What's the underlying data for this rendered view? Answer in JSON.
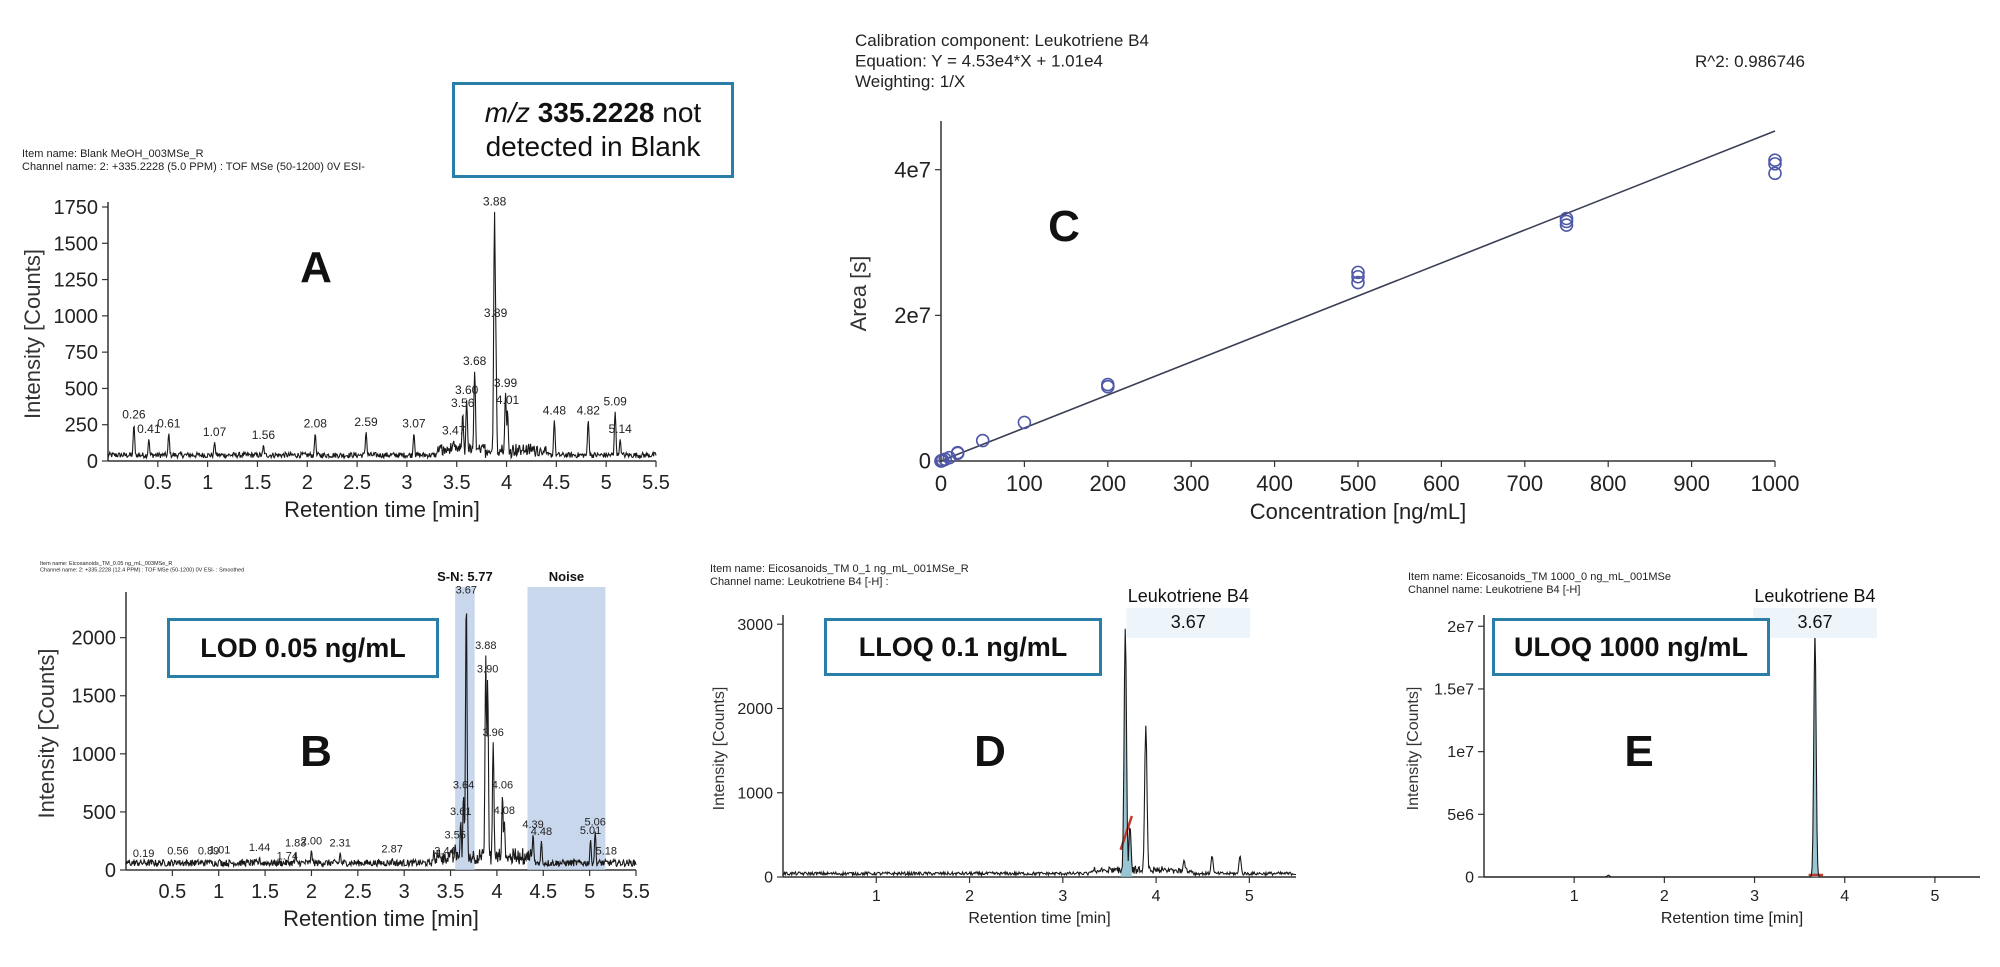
{
  "colors": {
    "trace": "#1a1a1a",
    "fit": "#3a3f55",
    "point": "#4f58a8",
    "peak_fill": "#7fb8c9",
    "baseline": "#c0392b",
    "band": "#b5c9e6",
    "box_border": "#2a7fa8",
    "label_bg": "#eef5fa"
  },
  "chart_data": [
    {
      "panel": "A",
      "type": "line",
      "header": [
        "Item name: Blank MeOH_003MSe_R",
        "Channel name: 2: +335.2228 (5.0 PPM) : TOF MSe (50-1200) 0V ESI-"
      ],
      "panel_letter": "A",
      "xlabel": "Retention time [min]",
      "ylabel": "Intensity [Counts]",
      "xlim": [
        0,
        5.5
      ],
      "ylim": [
        0,
        1750
      ],
      "xticks": [
        0.5,
        1,
        1.5,
        2,
        2.5,
        3,
        3.5,
        4,
        4.5,
        5,
        5.5
      ],
      "yticks": [
        0,
        250,
        500,
        750,
        1000,
        1250,
        1500,
        1750
      ],
      "noise_level": 60,
      "peaks": [
        [
          0.26,
          250
        ],
        [
          0.41,
          150
        ],
        [
          0.61,
          190
        ],
        [
          1.07,
          130
        ],
        [
          1.56,
          110
        ],
        [
          2.08,
          190
        ],
        [
          2.59,
          200
        ],
        [
          3.07,
          190
        ],
        [
          3.47,
          140
        ],
        [
          3.56,
          330
        ],
        [
          3.6,
          420
        ],
        [
          3.68,
          620
        ],
        [
          3.88,
          1720
        ],
        [
          3.89,
          950
        ],
        [
          3.99,
          470
        ],
        [
          4.01,
          350
        ],
        [
          4.48,
          280
        ],
        [
          4.82,
          280
        ],
        [
          5.09,
          340
        ],
        [
          5.14,
          150
        ]
      ],
      "peak_labels": [
        [
          0.26,
          "0.26"
        ],
        [
          0.41,
          "0.41"
        ],
        [
          0.61,
          "0.61"
        ],
        [
          1.07,
          "1.07"
        ],
        [
          1.56,
          "1.56"
        ],
        [
          2.08,
          "2.08"
        ],
        [
          2.59,
          "2.59"
        ],
        [
          3.07,
          "3.07"
        ],
        [
          3.47,
          "3.47"
        ],
        [
          3.56,
          "3.56"
        ],
        [
          3.6,
          "3.60"
        ],
        [
          3.68,
          "3.68"
        ],
        [
          3.88,
          "3.88"
        ],
        [
          3.89,
          "3.89"
        ],
        [
          3.99,
          "3.99"
        ],
        [
          4.01,
          "4.01"
        ],
        [
          4.48,
          "4.48"
        ],
        [
          4.82,
          "4.82"
        ],
        [
          5.09,
          "5.09"
        ],
        [
          5.14,
          "5.14"
        ]
      ],
      "callout": {
        "italic": "m/z",
        "bold": "335.2228",
        "rest": "not",
        "line2": "detected in Blank"
      }
    },
    {
      "panel": "B",
      "type": "line",
      "header": [
        "Item name: Eicosanoids_TM_0.05 ng_mL_003MSe_R",
        "Channel name: 2: +335.2228 (12.4 PPM) : TOF MSe (50-1200) 0V ESI- : Smoothed"
      ],
      "panel_letter": "B",
      "xlabel": "Retention time [min]",
      "ylabel": "Intensity [Counts]",
      "xlim": [
        0,
        5.5
      ],
      "ylim": [
        0,
        2350
      ],
      "xticks": [
        0.5,
        1,
        1.5,
        2,
        2.5,
        3,
        3.5,
        4,
        4.5,
        5,
        5.5
      ],
      "yticks": [
        0,
        500,
        1000,
        1500,
        2000
      ],
      "noise_level": 90,
      "peaks": [
        [
          0.19,
          60
        ],
        [
          0.56,
          80
        ],
        [
          0.89,
          80
        ],
        [
          1.01,
          90
        ],
        [
          1.44,
          110
        ],
        [
          1.74,
          40
        ],
        [
          1.83,
          150
        ],
        [
          2.0,
          170
        ],
        [
          2.31,
          150
        ],
        [
          2.87,
          100
        ],
        [
          3.44,
          80
        ],
        [
          3.55,
          220
        ],
        [
          3.61,
          420
        ],
        [
          3.64,
          650
        ],
        [
          3.67,
          2330
        ],
        [
          3.88,
          1850
        ],
        [
          3.9,
          1650
        ],
        [
          3.96,
          1100
        ],
        [
          4.06,
          650
        ],
        [
          4.08,
          430
        ],
        [
          4.39,
          310
        ],
        [
          4.48,
          250
        ],
        [
          5.01,
          260
        ],
        [
          5.06,
          330
        ],
        [
          5.18,
          80
        ]
      ],
      "peak_labels": [
        [
          0.19,
          "0.19"
        ],
        [
          0.56,
          "0.56"
        ],
        [
          0.89,
          "0.89"
        ],
        [
          1.01,
          "1.01"
        ],
        [
          1.44,
          "1.44"
        ],
        [
          1.74,
          "1.74"
        ],
        [
          1.83,
          "1.83"
        ],
        [
          2.0,
          "2.00"
        ],
        [
          2.31,
          "2.31"
        ],
        [
          2.87,
          "2.87"
        ],
        [
          3.44,
          "3.44"
        ],
        [
          3.55,
          "3.55"
        ],
        [
          3.61,
          "3.61"
        ],
        [
          3.64,
          "3.64"
        ],
        [
          3.67,
          "3.67"
        ],
        [
          3.88,
          "3.88"
        ],
        [
          3.9,
          "3.90"
        ],
        [
          3.96,
          "3.96"
        ],
        [
          4.06,
          "4.06"
        ],
        [
          4.08,
          "4.08"
        ],
        [
          4.39,
          "4.39"
        ],
        [
          4.48,
          "4.48"
        ],
        [
          5.01,
          "5.01"
        ],
        [
          5.06,
          "5.06"
        ],
        [
          5.18,
          "5.18"
        ]
      ],
      "bands": [
        {
          "label": "S-N: 5.77",
          "from": 3.55,
          "to": 3.76
        },
        {
          "label": "Noise",
          "from": 4.33,
          "to": 5.17
        }
      ],
      "callout": {
        "text": "LOD 0.05 ng/mL"
      }
    },
    {
      "panel": "C",
      "type": "scatter",
      "header": [
        "Calibration component: Leukotriene B4",
        "Equation: Y = 4.53e4*X + 1.01e4",
        "Weighting: 1/X"
      ],
      "r2_label": "R^2: 0.986746",
      "panel_letter": "C",
      "xlabel": "Concentration [ng/mL]",
      "ylabel": "Area [s]",
      "xlim": [
        0,
        1000
      ],
      "ylim": [
        0,
        46000000.0
      ],
      "xticks": [
        0,
        100,
        200,
        300,
        400,
        500,
        600,
        700,
        800,
        900,
        1000
      ],
      "yticks": [
        [
          0,
          "0"
        ],
        [
          20000000.0,
          "2e7"
        ],
        [
          40000000.0,
          "4e7"
        ]
      ],
      "fit": {
        "slope": 45300,
        "intercept": 10100
      },
      "points": [
        [
          0.05,
          0
        ],
        [
          0.1,
          0
        ],
        [
          0.5,
          20000
        ],
        [
          1,
          45000
        ],
        [
          2,
          90000
        ],
        [
          5,
          230000
        ],
        [
          10,
          450000
        ],
        [
          20,
          1050000
        ],
        [
          20,
          1150000
        ],
        [
          50,
          2800000
        ],
        [
          100,
          5300000
        ],
        [
          200,
          10200000
        ],
        [
          200,
          10500000
        ],
        [
          500,
          24500000
        ],
        [
          500,
          25300000
        ],
        [
          500,
          25900000
        ],
        [
          750,
          32400000
        ],
        [
          750,
          32900000
        ],
        [
          750,
          33300000
        ],
        [
          1000,
          39500000
        ],
        [
          1000,
          40800000
        ],
        [
          1000,
          41300000
        ]
      ]
    },
    {
      "panel": "D",
      "type": "line",
      "header": [
        "Item name: Eicosanoids_TM  0_1 ng_mL_001MSe_R",
        "Channel name: Leukotriene B4 [-H] :"
      ],
      "panel_letter": "D",
      "xlabel": "Retention time [min]",
      "ylabel": "Intensity [Counts]",
      "xlim": [
        0,
        5.5
      ],
      "ylim": [
        0,
        3050
      ],
      "xticks": [
        1,
        2,
        3,
        4,
        5
      ],
      "yticks": [
        0,
        1000,
        2000,
        3000
      ],
      "noise_level": 60,
      "peaks": [
        [
          3.67,
          2950
        ],
        [
          3.72,
          600
        ],
        [
          3.89,
          1800
        ],
        [
          4.3,
          200
        ],
        [
          4.6,
          250
        ],
        [
          4.9,
          250
        ]
      ],
      "compound": "Leukotriene B4",
      "compound_rt": "3.67",
      "integrated": [
        3.62,
        3.74
      ],
      "callout": {
        "text": "LLOQ 0.1 ng/mL"
      }
    },
    {
      "panel": "E",
      "type": "line",
      "header": [
        "Item name: Eicosanoids_TM  1000_0 ng_mL_001MSe",
        "Channel name: Leukotriene B4 [-H]"
      ],
      "panel_letter": "E",
      "xlabel": "Retention time [min]",
      "ylabel": "Intensity [Counts]",
      "xlim": [
        0,
        5.5
      ],
      "ylim": [
        0,
        20500000.0
      ],
      "xticks": [
        1,
        2,
        3,
        4,
        5
      ],
      "yticks": [
        [
          0,
          "0"
        ],
        [
          5000000,
          "5e6"
        ],
        [
          10000000,
          "1e7"
        ],
        [
          15000000,
          "1.5e7"
        ],
        [
          20000000,
          "2e7"
        ]
      ],
      "noise_level": 0,
      "peaks": [
        [
          3.67,
          19600000
        ],
        [
          1.38,
          150000
        ]
      ],
      "compound": "Leukotriene B4",
      "compound_rt": "3.67",
      "integrated": [
        3.6,
        3.76
      ],
      "callout": {
        "text": "ULOQ 1000 ng/mL"
      }
    }
  ]
}
